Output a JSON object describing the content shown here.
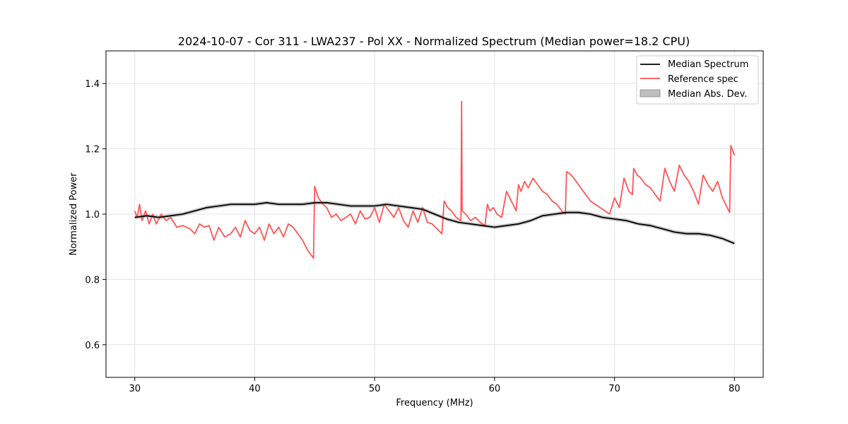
{
  "chart_data": {
    "type": "line",
    "title": "2024-10-07 - Cor 311 - LWA237 - Pol XX - Normalized Spectrum (Median power=18.2 CPU)",
    "xlabel": "Frequency (MHz)",
    "ylabel": "Normalized Power",
    "xlim": [
      27.6,
      82.4
    ],
    "ylim": [
      0.5,
      1.5
    ],
    "xticks": [
      30,
      40,
      50,
      60,
      70,
      80
    ],
    "yticks": [
      0.6,
      0.8,
      1.0,
      1.2,
      1.4
    ],
    "xtick_labels": [
      "30",
      "40",
      "50",
      "60",
      "70",
      "80"
    ],
    "ytick_labels": [
      "0.6",
      "0.8",
      "1.0",
      "1.2",
      "1.4"
    ],
    "grid": true,
    "legend_position": "top-right",
    "legend": [
      "Median Spectrum",
      "Reference spec",
      "Median Abs. Dev."
    ],
    "colors": {
      "median": "#000000",
      "reference": "#ff5555",
      "mad_fill": "#bfbfbf"
    },
    "series": [
      {
        "name": "Median Spectrum",
        "x": [
          30,
          31,
          32,
          33,
          34,
          35,
          36,
          37,
          38,
          39,
          40,
          41,
          42,
          43,
          44,
          45,
          46,
          47,
          48,
          49,
          50,
          51,
          52,
          53,
          54,
          55,
          56,
          57,
          58,
          59,
          60,
          61,
          62,
          63,
          64,
          65,
          66,
          67,
          68,
          69,
          70,
          71,
          72,
          73,
          74,
          75,
          76,
          77,
          78,
          79,
          80
        ],
        "values": [
          0.99,
          0.995,
          0.99,
          0.995,
          1.0,
          1.01,
          1.02,
          1.025,
          1.03,
          1.03,
          1.03,
          1.035,
          1.03,
          1.03,
          1.03,
          1.035,
          1.035,
          1.03,
          1.025,
          1.025,
          1.025,
          1.03,
          1.025,
          1.02,
          1.015,
          1.0,
          0.985,
          0.975,
          0.97,
          0.965,
          0.96,
          0.965,
          0.97,
          0.98,
          0.995,
          1.0,
          1.005,
          1.005,
          1.0,
          0.99,
          0.985,
          0.98,
          0.97,
          0.965,
          0.955,
          0.945,
          0.94,
          0.94,
          0.935,
          0.925,
          0.91
        ]
      },
      {
        "name": "Reference spec",
        "x": [
          30.0,
          30.2,
          30.4,
          30.6,
          30.9,
          31.2,
          31.5,
          31.8,
          32.2,
          32.6,
          33.0,
          33.5,
          34.0,
          34.6,
          35.0,
          35.4,
          35.8,
          36.2,
          36.6,
          37.0,
          37.5,
          38.0,
          38.4,
          38.8,
          39.2,
          39.6,
          40.0,
          40.4,
          40.8,
          41.2,
          41.6,
          42.0,
          42.4,
          42.8,
          43.2,
          43.6,
          44.0,
          44.4,
          44.9,
          45.0,
          45.3,
          45.7,
          46.0,
          46.4,
          46.8,
          47.2,
          47.6,
          48.0,
          48.4,
          48.8,
          49.2,
          49.6,
          50.0,
          50.4,
          50.8,
          51.2,
          51.6,
          52.0,
          52.4,
          52.8,
          53.2,
          53.6,
          54.0,
          54.4,
          54.8,
          55.2,
          55.6,
          55.8,
          56.1,
          56.4,
          56.8,
          57.2,
          57.25,
          57.3,
          57.6,
          58.0,
          58.4,
          58.8,
          59.2,
          59.4,
          59.6,
          59.9,
          60.2,
          60.6,
          61.0,
          61.4,
          61.8,
          62.0,
          62.2,
          62.5,
          62.8,
          63.2,
          63.6,
          64.0,
          64.4,
          64.8,
          65.2,
          65.6,
          65.9,
          66.0,
          66.4,
          66.8,
          67.2,
          67.6,
          68.0,
          68.4,
          68.8,
          69.2,
          69.6,
          70.0,
          70.4,
          70.8,
          71.2,
          71.5,
          71.6,
          71.9,
          72.2,
          72.6,
          73.0,
          73.4,
          73.8,
          74.2,
          74.6,
          75.0,
          75.4,
          75.8,
          76.2,
          76.6,
          77.0,
          77.4,
          77.8,
          78.2,
          78.6,
          79.0,
          79.4,
          79.6,
          79.7,
          80.0
        ],
        "values": [
          1.01,
          0.99,
          1.03,
          0.98,
          1.01,
          0.97,
          1.0,
          0.97,
          1.0,
          0.98,
          0.99,
          0.96,
          0.965,
          0.955,
          0.94,
          0.97,
          0.96,
          0.965,
          0.92,
          0.96,
          0.93,
          0.94,
          0.96,
          0.93,
          0.98,
          0.95,
          0.94,
          0.96,
          0.92,
          0.97,
          0.94,
          0.96,
          0.93,
          0.97,
          0.96,
          0.94,
          0.92,
          0.89,
          0.865,
          1.085,
          1.05,
          1.03,
          1.02,
          0.99,
          1.0,
          0.98,
          0.99,
          1.0,
          0.97,
          1.01,
          0.985,
          0.99,
          1.02,
          0.975,
          1.03,
          1.01,
          0.99,
          1.02,
          0.98,
          0.96,
          1.01,
          0.975,
          1.02,
          0.975,
          0.97,
          0.955,
          0.94,
          1.04,
          1.02,
          1.01,
          0.99,
          0.98,
          1.345,
          1.01,
          1.0,
          0.98,
          0.99,
          0.975,
          0.965,
          1.03,
          1.01,
          1.02,
          1.0,
          0.99,
          1.07,
          1.04,
          1.01,
          1.09,
          1.07,
          1.1,
          1.08,
          1.11,
          1.09,
          1.07,
          1.06,
          1.04,
          1.03,
          1.01,
          1.0,
          1.13,
          1.12,
          1.1,
          1.08,
          1.06,
          1.04,
          1.03,
          1.02,
          1.01,
          1.0,
          1.05,
          1.02,
          1.11,
          1.07,
          1.06,
          1.14,
          1.12,
          1.11,
          1.09,
          1.08,
          1.06,
          1.04,
          1.14,
          1.1,
          1.07,
          1.15,
          1.12,
          1.1,
          1.07,
          1.03,
          1.12,
          1.09,
          1.07,
          1.1,
          1.05,
          1.02,
          1.005,
          1.21,
          1.18
        ]
      }
    ],
    "mad_band": {
      "name": "Median Abs. Dev.",
      "halfwidth": 0.006
    }
  }
}
